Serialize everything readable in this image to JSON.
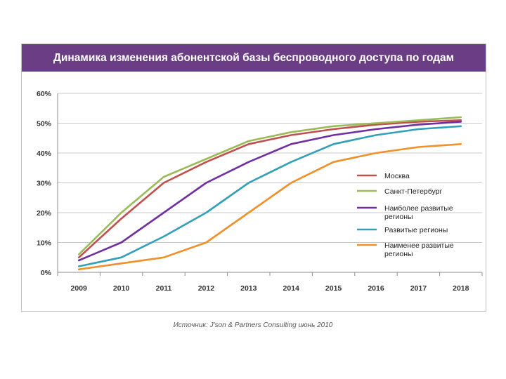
{
  "source_note": "Источник: J'son & Partners Consulting июнь 2010",
  "chart_data": {
    "type": "line",
    "title": "Динамика изменения абонентской базы беспроводного доступа по годам",
    "xlabel": "",
    "ylabel": "",
    "x": [
      "2009",
      "2010",
      "2011",
      "2012",
      "2013",
      "2014",
      "2015",
      "2016",
      "2017",
      "2018"
    ],
    "ylim": [
      0,
      60
    ],
    "yticks": [
      0,
      10,
      20,
      30,
      40,
      50,
      60
    ],
    "ytick_labels": [
      "0%",
      "10%",
      "20%",
      "30%",
      "40%",
      "50%",
      "60%"
    ],
    "grid": true,
    "legend_position": "right",
    "series": [
      {
        "name": "Москва",
        "color": "#c0504d",
        "values": [
          5,
          18,
          30,
          37,
          43,
          46,
          48,
          49.5,
          50.5,
          51
        ]
      },
      {
        "name": "Санкт-Петербург",
        "color": "#9bbb59",
        "values": [
          6,
          20,
          32,
          38,
          44,
          47,
          49,
          50,
          51,
          52
        ]
      },
      {
        "name": "Наиболее развитые регионы",
        "color": "#7030a0",
        "values": [
          4,
          10,
          20,
          30,
          37,
          43,
          46,
          48,
          49.5,
          50.5
        ]
      },
      {
        "name": "Развитые регионы",
        "color": "#31a0b8",
        "values": [
          2,
          5,
          12,
          20,
          30,
          37,
          43,
          46,
          48,
          49
        ]
      },
      {
        "name": "Наименее развитые регионы",
        "color": "#f0902a",
        "values": [
          1,
          3,
          5,
          10,
          20,
          30,
          37,
          40,
          42,
          43
        ]
      }
    ]
  }
}
